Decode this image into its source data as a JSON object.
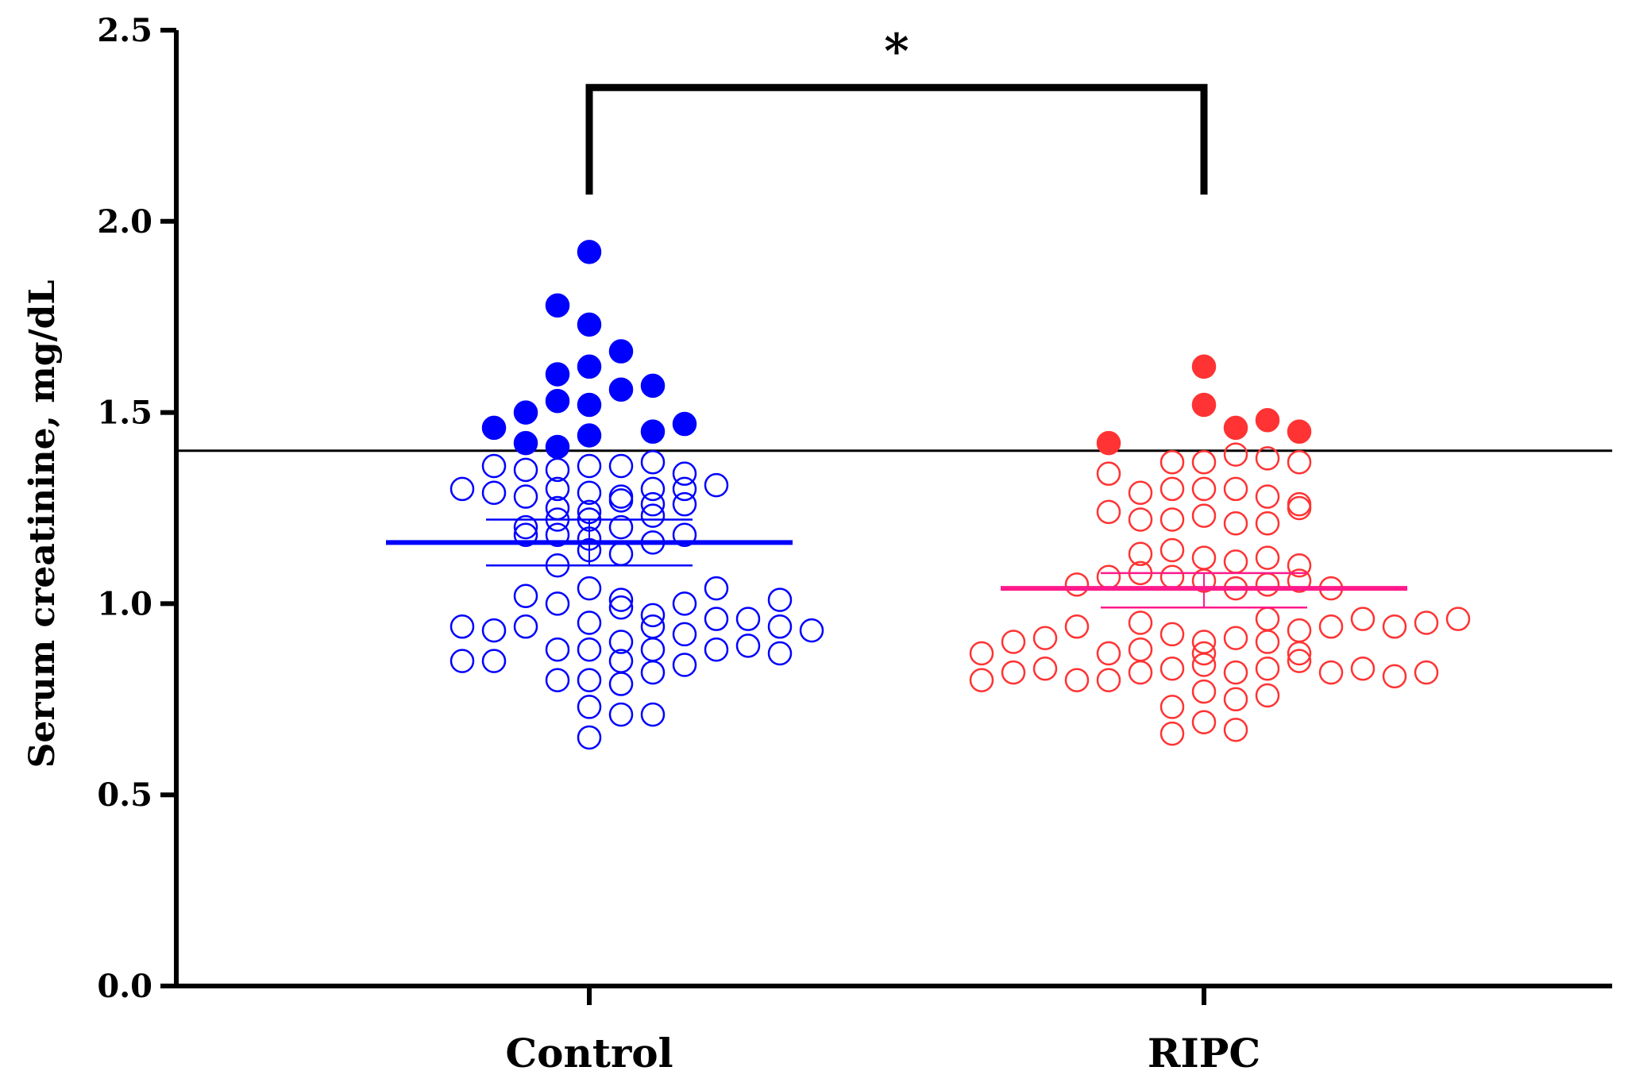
{
  "chart_data": {
    "type": "scatter",
    "subtype": "dot-plot",
    "title": "",
    "xlabel": "",
    "ylabel": "Serum creatinine, mg/dL",
    "ylim": [
      0.0,
      2.5
    ],
    "yticks": [
      "0.0",
      "0.5",
      "1.0",
      "1.5",
      "2.0",
      "2.5"
    ],
    "grid": false,
    "categories": [
      "Control",
      "RIPC"
    ],
    "threshold": 1.4,
    "significance": {
      "label": "*",
      "between": [
        "Control",
        "RIPC"
      ]
    },
    "series": [
      {
        "name": "Control",
        "color": "#0000ff",
        "mean": 1.16,
        "error_bar": [
          1.1,
          1.22
        ],
        "points": [
          [
            0,
            1.92
          ],
          [
            -1,
            1.78
          ],
          [
            0,
            1.73
          ],
          [
            1,
            1.66
          ],
          [
            0,
            1.62
          ],
          [
            -1,
            1.6
          ],
          [
            1,
            1.56
          ],
          [
            2,
            1.57
          ],
          [
            -1,
            1.53
          ],
          [
            0,
            1.52
          ],
          [
            -2,
            1.5
          ],
          [
            -3,
            1.46
          ],
          [
            3,
            1.47
          ],
          [
            2,
            1.45
          ],
          [
            0,
            1.44
          ],
          [
            -2,
            1.42
          ],
          [
            -1,
            1.41
          ],
          [
            -4,
            1.3
          ],
          [
            -3,
            1.29
          ],
          [
            -2,
            1.28
          ],
          [
            -1,
            1.3
          ],
          [
            0,
            1.29
          ],
          [
            1,
            1.28
          ],
          [
            2,
            1.3
          ],
          [
            3,
            1.3
          ],
          [
            4,
            1.31
          ],
          [
            -3,
            1.36
          ],
          [
            -2,
            1.35
          ],
          [
            -1,
            1.35
          ],
          [
            0,
            1.36
          ],
          [
            1,
            1.36
          ],
          [
            2,
            1.37
          ],
          [
            3,
            1.34
          ],
          [
            -2,
            1.2
          ],
          [
            -1,
            1.25
          ],
          [
            0,
            1.24
          ],
          [
            1,
            1.27
          ],
          [
            2,
            1.26
          ],
          [
            3,
            1.26
          ],
          [
            -2,
            1.18
          ],
          [
            -1,
            1.22
          ],
          [
            0,
            1.22
          ],
          [
            1,
            1.2
          ],
          [
            2,
            1.23
          ],
          [
            3,
            1.18
          ],
          [
            -1,
            1.18
          ],
          [
            0,
            1.17
          ],
          [
            1,
            1.13
          ],
          [
            2,
            1.16
          ],
          [
            -1,
            1.1
          ],
          [
            0,
            1.14
          ],
          [
            -4,
            0.94
          ],
          [
            -3,
            0.93
          ],
          [
            -2,
            1.02
          ],
          [
            -1,
            1.0
          ],
          [
            0,
            1.04
          ],
          [
            1,
            1.01
          ],
          [
            2,
            0.97
          ],
          [
            3,
            1.0
          ],
          [
            4,
            1.04
          ],
          [
            5,
            0.96
          ],
          [
            6,
            1.01
          ],
          [
            6,
            0.94
          ],
          [
            -4,
            0.85
          ],
          [
            -3,
            0.85
          ],
          [
            -2,
            0.94
          ],
          [
            -1,
            0.88
          ],
          [
            0,
            0.95
          ],
          [
            1,
            0.99
          ],
          [
            2,
            0.94
          ],
          [
            3,
            0.92
          ],
          [
            4,
            0.96
          ],
          [
            5,
            0.89
          ],
          [
            6,
            0.87
          ],
          [
            7,
            0.93
          ],
          [
            -1,
            0.8
          ],
          [
            0,
            0.88
          ],
          [
            1,
            0.9
          ],
          [
            2,
            0.88
          ],
          [
            3,
            0.84
          ],
          [
            4,
            0.88
          ],
          [
            0,
            0.8
          ],
          [
            1,
            0.85
          ],
          [
            1,
            0.79
          ],
          [
            2,
            0.82
          ],
          [
            0,
            0.73
          ],
          [
            1,
            0.71
          ],
          [
            2,
            0.71
          ],
          [
            0,
            0.65
          ]
        ]
      },
      {
        "name": "RIPC",
        "color": "#ff3333",
        "mean": 1.04,
        "error_bar": [
          0.99,
          1.08
        ],
        "points": [
          [
            0,
            1.62
          ],
          [
            0,
            1.52
          ],
          [
            2,
            1.48
          ],
          [
            1,
            1.46
          ],
          [
            3,
            1.45
          ],
          [
            -3,
            1.42
          ],
          [
            -1,
            1.37
          ],
          [
            0,
            1.37
          ],
          [
            1,
            1.39
          ],
          [
            2,
            1.38
          ],
          [
            3,
            1.37
          ],
          [
            -3,
            1.34
          ],
          [
            -2,
            1.29
          ],
          [
            -1,
            1.3
          ],
          [
            0,
            1.3
          ],
          [
            1,
            1.3
          ],
          [
            2,
            1.28
          ],
          [
            3,
            1.26
          ],
          [
            -3,
            1.24
          ],
          [
            -2,
            1.22
          ],
          [
            -1,
            1.22
          ],
          [
            0,
            1.23
          ],
          [
            1,
            1.21
          ],
          [
            2,
            1.21
          ],
          [
            3,
            1.25
          ],
          [
            -2,
            1.13
          ],
          [
            -1,
            1.14
          ],
          [
            0,
            1.12
          ],
          [
            1,
            1.11
          ],
          [
            2,
            1.12
          ],
          [
            3,
            1.1
          ],
          [
            -4,
            1.05
          ],
          [
            -3,
            1.07
          ],
          [
            -2,
            1.08
          ],
          [
            -1,
            1.07
          ],
          [
            0,
            1.06
          ],
          [
            1,
            1.04
          ],
          [
            2,
            1.05
          ],
          [
            3,
            1.06
          ],
          [
            4,
            1.04
          ],
          [
            -7,
            0.87
          ],
          [
            -6,
            0.9
          ],
          [
            -5,
            0.91
          ],
          [
            -4,
            0.94
          ],
          [
            -3,
            0.87
          ],
          [
            -2,
            0.95
          ],
          [
            -1,
            0.92
          ],
          [
            0,
            0.9
          ],
          [
            1,
            0.91
          ],
          [
            2,
            0.96
          ],
          [
            3,
            0.93
          ],
          [
            4,
            0.94
          ],
          [
            5,
            0.96
          ],
          [
            6,
            0.94
          ],
          [
            7,
            0.95
          ],
          [
            8,
            0.96
          ],
          [
            -7,
            0.8
          ],
          [
            -6,
            0.82
          ],
          [
            -5,
            0.83
          ],
          [
            -4,
            0.8
          ],
          [
            -3,
            0.8
          ],
          [
            -2,
            0.82
          ],
          [
            -1,
            0.83
          ],
          [
            0,
            0.84
          ],
          [
            1,
            0.82
          ],
          [
            2,
            0.9
          ],
          [
            3,
            0.87
          ],
          [
            4,
            0.82
          ],
          [
            5,
            0.83
          ],
          [
            6,
            0.81
          ],
          [
            7,
            0.82
          ],
          [
            -2,
            0.88
          ],
          [
            0,
            0.87
          ],
          [
            2,
            0.83
          ],
          [
            3,
            0.85
          ],
          [
            -1,
            0.73
          ],
          [
            0,
            0.77
          ],
          [
            1,
            0.75
          ],
          [
            2,
            0.76
          ],
          [
            -1,
            0.66
          ],
          [
            0,
            0.69
          ],
          [
            1,
            0.67
          ]
        ]
      }
    ]
  }
}
